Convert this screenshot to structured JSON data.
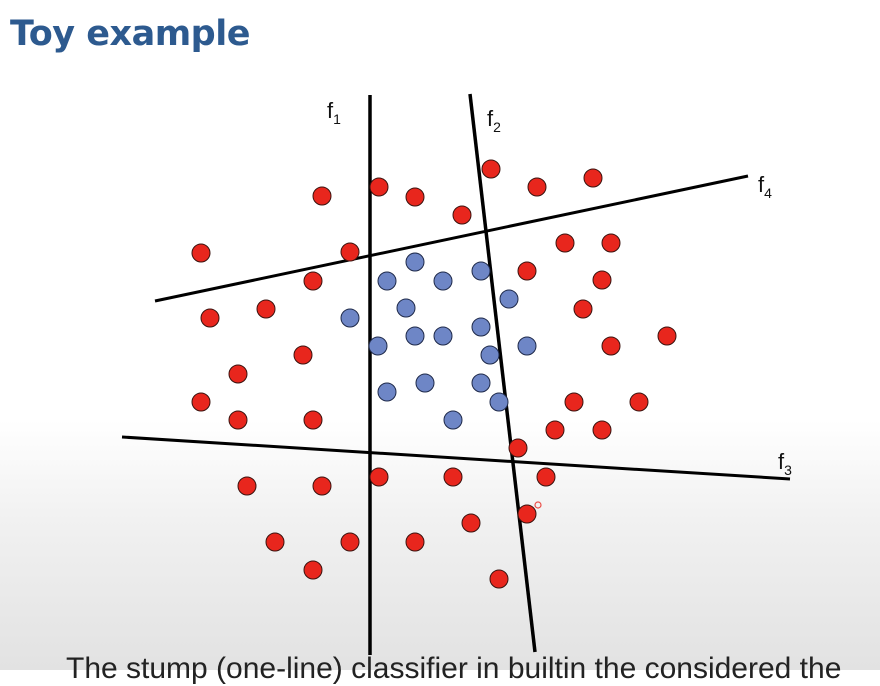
{
  "slide": {
    "title": "Toy example",
    "bottom_caption": "The stump (one-line) classifier in builtin the considered the"
  },
  "diagram": {
    "lines": [
      {
        "id": "f1",
        "label": "f",
        "sub": "1"
      },
      {
        "id": "f2",
        "label": "f",
        "sub": "2"
      },
      {
        "id": "f3",
        "label": "f",
        "sub": "3"
      },
      {
        "id": "f4",
        "label": "f",
        "sub": "4"
      }
    ],
    "colors": {
      "red_point": "#e8261d",
      "blue_point": "#6e86c6",
      "line": "#000000",
      "title": "#2d5a8f"
    }
  }
}
